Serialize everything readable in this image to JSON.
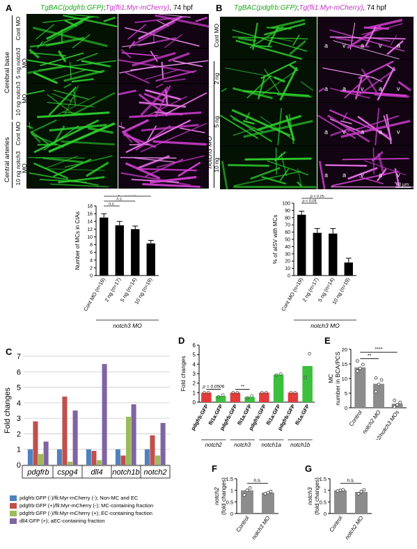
{
  "panels": {
    "A": {
      "letter": "A",
      "title_green": "TgBAC(pdgfrb:GFP)",
      "title_sep": ";",
      "title_magenta": "Tg(fli1:Myr-mCherry)",
      "title_suffix": ", 74 hpf",
      "group_labels": [
        "Cerebral base",
        "Central arteries"
      ],
      "row_labels": [
        "Cont MO",
        "5 ng notch3 MO",
        "10 ng notch3 MO",
        "Cont MO",
        "10 ng notch3 MO"
      ],
      "chart": {
        "ylabel": "Number of MCs in CtAs",
        "xgroup": "notch3 MO",
        "categories": [
          "Cont MO (n=19)",
          "2 ng (n=17)",
          "5 ng (n=14)",
          "10 ng (n=19)"
        ],
        "values": [
          15,
          13,
          12,
          8.3
        ],
        "errors": [
          1.0,
          1.0,
          0.8,
          0.8
        ],
        "ylim": [
          0,
          18
        ],
        "yticks": [
          0,
          2,
          4,
          6,
          8,
          10,
          12,
          14,
          16,
          18
        ],
        "sig": [
          "p < 0.0001",
          "n.s.",
          "n.s."
        ]
      }
    },
    "B": {
      "letter": "B",
      "title_green": "TgBAC(pdgfrb:GFP)",
      "title_sep": ";",
      "title_magenta": "Tg(fli1:Myr-mCherry)",
      "title_suffix": ", 74 hpf",
      "group_label": "notch3 MO",
      "row_labels": [
        "Cont MO",
        "2 ng",
        "5 ng",
        "10 ng"
      ],
      "vessel_labels": [
        "a",
        "v"
      ],
      "scale_bar": "50 µm",
      "chart": {
        "ylabel": "% of aISV with MCs",
        "xgroup": "notch3 MO",
        "categories": [
          "Cont MO (n=19)",
          "2 ng (n=17)",
          "5 ng (n=14)",
          "10 ng (n=19)"
        ],
        "values": [
          84,
          59,
          58,
          18
        ],
        "errors": [
          5,
          6,
          7,
          6
        ],
        "ylim": [
          0,
          100
        ],
        "yticks": [
          0,
          10,
          20,
          30,
          40,
          50,
          60,
          70,
          80,
          90,
          100
        ],
        "sig": [
          "p < 0.0001",
          "p < 0.05",
          "p < 0.05"
        ]
      }
    },
    "C": {
      "letter": "C",
      "chart": {
        "type": "bar",
        "ylabel": "Fold changes",
        "categories": [
          "pdgfrb",
          "cspg4",
          "dll4",
          "notch1b",
          "notch2"
        ],
        "ylim": [
          0,
          7
        ],
        "yticks": [
          0,
          1,
          2,
          3,
          4,
          5,
          6,
          7
        ],
        "series": [
          {
            "name": "pdgfrb:GFP (-)/fli:Myr-mCherry (-); Non-MC and EC",
            "color": "#4f81bd",
            "values": [
              1,
              1,
              1,
              1,
              1
            ]
          },
          {
            "name": "pdgfrb:GFP (+)/fli:Myr-mCherry (-); MC-containing fraction",
            "color": "#c0504d",
            "values": [
              2.8,
              4.4,
              0.9,
              0.6,
              1.9
            ]
          },
          {
            "name": "pdgfrb:GFP (-)/fli:Myr-mCherry (+); EC-containing fraction",
            "color": "#9bbb59",
            "values": [
              0.7,
              0.2,
              0.3,
              3.1,
              0.6
            ]
          },
          {
            "name": "dll4:GFP (+); aEC-containing fraction",
            "color": "#8064a2",
            "values": [
              1.5,
              3.5,
              6.5,
              3.9,
              2.7
            ]
          }
        ]
      }
    },
    "D": {
      "letter": "D",
      "chart": {
        "type": "bar",
        "ylabel": "Fold changes",
        "ylim": [
          0,
          6
        ],
        "yticks": [
          0,
          1,
          2,
          3,
          4,
          5,
          6
        ],
        "categories": [
          "pdgfrb:GFP",
          "fli1a:GFP",
          "pdgfrb:GFP",
          "fli1a:GFP",
          "pdgfrb:GFP",
          "fli1a:GFP",
          "pdgfrb:GFP",
          "fli1a:GFP"
        ],
        "values": [
          1,
          0.65,
          1,
          0.55,
          1,
          2.9,
          1,
          3.8
        ],
        "colors": [
          "#e33b3b",
          "#3cbf3c",
          "#e33b3b",
          "#3cbf3c",
          "#e33b3b",
          "#3cbf3c",
          "#e33b3b",
          "#3cbf3c"
        ],
        "points": [
          [
            1,
            1
          ],
          [
            0.55,
            0.75
          ],
          [
            1,
            1
          ],
          [
            0.45,
            0.65
          ],
          [
            1,
            1
          ],
          [
            2.85,
            2.95
          ],
          [
            1,
            1
          ],
          [
            2.6,
            5.1
          ]
        ],
        "genes": [
          "notch2",
          "notch3",
          "notch1a",
          "notch1b"
        ],
        "sig": [
          "p = 0.0506",
          "**"
        ]
      }
    },
    "E": {
      "letter": "E",
      "chart": {
        "type": "bar",
        "ylabel": "MC number in BCA/PCS",
        "ylim": [
          0,
          20
        ],
        "yticks": [
          0,
          5,
          10,
          15,
          20
        ],
        "categories": [
          "Control",
          "notch2 MO",
          "notch2/notch3 MOs"
        ],
        "values": [
          13.8,
          8.2,
          1.4
        ],
        "points": [
          [
            12.5,
            13.5,
            14.8,
            16
          ],
          [
            5.5,
            8,
            9.5,
            10.2
          ],
          [
            0.3,
            1,
            1.8,
            2.5
          ]
        ],
        "sig": [
          "****",
          "**"
        ]
      }
    },
    "F": {
      "letter": "F",
      "chart": {
        "type": "bar",
        "ylabel": "notch2 (fold changes)",
        "ylim": [
          0,
          1.5
        ],
        "yticks": [
          0,
          0.5,
          1,
          1.5
        ],
        "categories": [
          "Control",
          "notch3 MO"
        ],
        "values": [
          1.0,
          0.9
        ],
        "points": [
          [
            0.8,
            1.0,
            1.1
          ],
          [
            0.85,
            0.9,
            0.95
          ]
        ],
        "sig": [
          "n.s."
        ]
      }
    },
    "G": {
      "letter": "G",
      "chart": {
        "type": "bar",
        "ylabel": "notch3 (fold changes)",
        "ylim": [
          0,
          1.5
        ],
        "yticks": [
          0,
          0.5,
          1,
          1.5
        ],
        "categories": [
          "Control",
          "notch2 MO"
        ],
        "values": [
          1.0,
          0.93
        ],
        "points": [
          [
            0.97,
            1.0,
            1.02
          ],
          [
            0.85,
            0.95,
            1.02
          ]
        ],
        "sig": [
          "n.s."
        ]
      }
    }
  }
}
